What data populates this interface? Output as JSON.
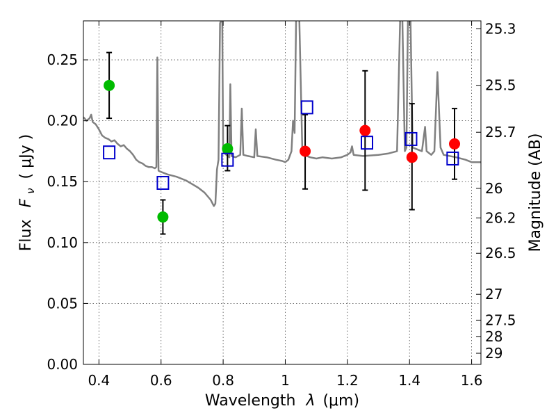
{
  "chart_data": {
    "type": "scatter",
    "xlabel_text": "Wavelength",
    "xlabel_symbol": "λ",
    "xlabel_unit": "(μm)",
    "ylabel_text": "Flux",
    "ylabel_symbol": "F",
    "ylabel_sub": "ν",
    "ylabel_unit": "( μJy )",
    "y2label": "Magnitude (AB)",
    "xlim": [
      0.35,
      1.63
    ],
    "ylim": [
      0.0,
      0.282
    ],
    "grid": true,
    "x_ticks": [
      {
        "v": 0.4,
        "label": "0.4"
      },
      {
        "v": 0.6,
        "label": "0.6"
      },
      {
        "v": 0.8,
        "label": "0.8"
      },
      {
        "v": 1.0,
        "label": "1"
      },
      {
        "v": 1.2,
        "label": "1.2"
      },
      {
        "v": 1.4,
        "label": "1.4"
      },
      {
        "v": 1.6,
        "label": "1.6"
      }
    ],
    "y_ticks": [
      {
        "v": 0.0,
        "label": "0.00"
      },
      {
        "v": 0.05,
        "label": "0.05"
      },
      {
        "v": 0.1,
        "label": "0.10"
      },
      {
        "v": 0.15,
        "label": "0.15"
      },
      {
        "v": 0.2,
        "label": "0.20"
      },
      {
        "v": 0.25,
        "label": "0.25"
      }
    ],
    "mag_ticks": [
      {
        "mag": 25.3,
        "label": "25.3"
      },
      {
        "mag": 25.5,
        "label": "25.5"
      },
      {
        "mag": 25.7,
        "label": "25.7"
      },
      {
        "mag": 26.0,
        "label": "26"
      },
      {
        "mag": 26.2,
        "label": "26.2"
      },
      {
        "mag": 26.5,
        "label": "26.5"
      },
      {
        "mag": 27.0,
        "label": "27"
      },
      {
        "mag": 27.5,
        "label": "27.5"
      },
      {
        "mag": 28.0,
        "label": "28"
      },
      {
        "mag": 29.0,
        "label": "29"
      }
    ],
    "series": [
      {
        "name": "model_spectrum",
        "kind": "line",
        "color": "#808080",
        "points": [
          [
            0.35,
            0.203
          ],
          [
            0.36,
            0.2
          ],
          [
            0.37,
            0.202
          ],
          [
            0.375,
            0.205
          ],
          [
            0.38,
            0.199
          ],
          [
            0.39,
            0.197
          ],
          [
            0.4,
            0.193
          ],
          [
            0.41,
            0.188
          ],
          [
            0.42,
            0.186
          ],
          [
            0.43,
            0.185
          ],
          [
            0.44,
            0.183
          ],
          [
            0.45,
            0.184
          ],
          [
            0.46,
            0.181
          ],
          [
            0.47,
            0.179
          ],
          [
            0.48,
            0.18
          ],
          [
            0.49,
            0.177
          ],
          [
            0.5,
            0.175
          ],
          [
            0.51,
            0.172
          ],
          [
            0.52,
            0.168
          ],
          [
            0.53,
            0.166
          ],
          [
            0.54,
            0.165
          ],
          [
            0.55,
            0.163
          ],
          [
            0.56,
            0.162
          ],
          [
            0.57,
            0.162
          ],
          [
            0.58,
            0.161
          ],
          [
            0.585,
            0.162
          ],
          [
            0.588,
            0.252
          ],
          [
            0.592,
            0.159
          ],
          [
            0.6,
            0.158
          ],
          [
            0.62,
            0.156
          ],
          [
            0.65,
            0.154
          ],
          [
            0.68,
            0.151
          ],
          [
            0.7,
            0.148
          ],
          [
            0.72,
            0.145
          ],
          [
            0.74,
            0.141
          ],
          [
            0.76,
            0.135
          ],
          [
            0.77,
            0.13
          ],
          [
            0.775,
            0.132
          ],
          [
            0.78,
            0.16
          ],
          [
            0.785,
            0.168
          ],
          [
            0.79,
            0.28
          ],
          [
            0.797,
            0.285
          ],
          [
            0.8,
            0.175
          ],
          [
            0.81,
            0.172
          ],
          [
            0.82,
            0.17
          ],
          [
            0.823,
            0.23
          ],
          [
            0.827,
            0.171
          ],
          [
            0.84,
            0.17
          ],
          [
            0.855,
            0.172
          ],
          [
            0.86,
            0.21
          ],
          [
            0.865,
            0.172
          ],
          [
            0.88,
            0.171
          ],
          [
            0.9,
            0.17
          ],
          [
            0.905,
            0.193
          ],
          [
            0.91,
            0.171
          ],
          [
            0.94,
            0.17
          ],
          [
            0.97,
            0.168
          ],
          [
            0.99,
            0.167
          ],
          [
            1.0,
            0.166
          ],
          [
            1.01,
            0.168
          ],
          [
            1.02,
            0.175
          ],
          [
            1.025,
            0.2
          ],
          [
            1.03,
            0.19
          ],
          [
            1.035,
            0.285
          ],
          [
            1.045,
            0.285
          ],
          [
            1.055,
            0.175
          ],
          [
            1.06,
            0.172
          ],
          [
            1.08,
            0.17
          ],
          [
            1.1,
            0.169
          ],
          [
            1.12,
            0.17
          ],
          [
            1.15,
            0.169
          ],
          [
            1.18,
            0.17
          ],
          [
            1.2,
            0.172
          ],
          [
            1.21,
            0.174
          ],
          [
            1.215,
            0.179
          ],
          [
            1.22,
            0.172
          ],
          [
            1.25,
            0.171
          ],
          [
            1.3,
            0.172
          ],
          [
            1.33,
            0.173
          ],
          [
            1.36,
            0.175
          ],
          [
            1.37,
            0.285
          ],
          [
            1.377,
            0.285
          ],
          [
            1.385,
            0.175
          ],
          [
            1.39,
            0.178
          ],
          [
            1.395,
            0.285
          ],
          [
            1.403,
            0.285
          ],
          [
            1.41,
            0.178
          ],
          [
            1.43,
            0.176
          ],
          [
            1.44,
            0.175
          ],
          [
            1.45,
            0.195
          ],
          [
            1.455,
            0.175
          ],
          [
            1.47,
            0.172
          ],
          [
            1.48,
            0.175
          ],
          [
            1.49,
            0.24
          ],
          [
            1.5,
            0.178
          ],
          [
            1.51,
            0.172
          ],
          [
            1.55,
            0.17
          ],
          [
            1.58,
            0.168
          ],
          [
            1.6,
            0.166
          ],
          [
            1.63,
            0.166
          ]
        ]
      },
      {
        "name": "observed_green",
        "kind": "points",
        "color": "#00bb00",
        "points": [
          {
            "x": 0.433,
            "y": 0.229,
            "lo": 0.202,
            "hi": 0.256
          },
          {
            "x": 0.606,
            "y": 0.121,
            "lo": 0.107,
            "hi": 0.135
          },
          {
            "x": 0.814,
            "y": 0.177,
            "lo": 0.159,
            "hi": 0.196
          }
        ]
      },
      {
        "name": "observed_red",
        "kind": "points",
        "color": "#ff0000",
        "points": [
          {
            "x": 1.064,
            "y": 0.175,
            "lo": 0.144,
            "hi": 0.205
          },
          {
            "x": 1.257,
            "y": 0.192,
            "lo": 0.143,
            "hi": 0.241
          },
          {
            "x": 1.408,
            "y": 0.17,
            "lo": 0.127,
            "hi": 0.214
          },
          {
            "x": 1.545,
            "y": 0.181,
            "lo": 0.152,
            "hi": 0.21
          }
        ]
      },
      {
        "name": "model_photometry",
        "kind": "squares",
        "color": "#0000cc",
        "points": [
          {
            "x": 0.433,
            "y": 0.174
          },
          {
            "x": 0.606,
            "y": 0.149
          },
          {
            "x": 0.814,
            "y": 0.168
          },
          {
            "x": 1.07,
            "y": 0.211
          },
          {
            "x": 1.263,
            "y": 0.182
          },
          {
            "x": 1.405,
            "y": 0.185
          },
          {
            "x": 1.539,
            "y": 0.169
          }
        ]
      }
    ]
  }
}
